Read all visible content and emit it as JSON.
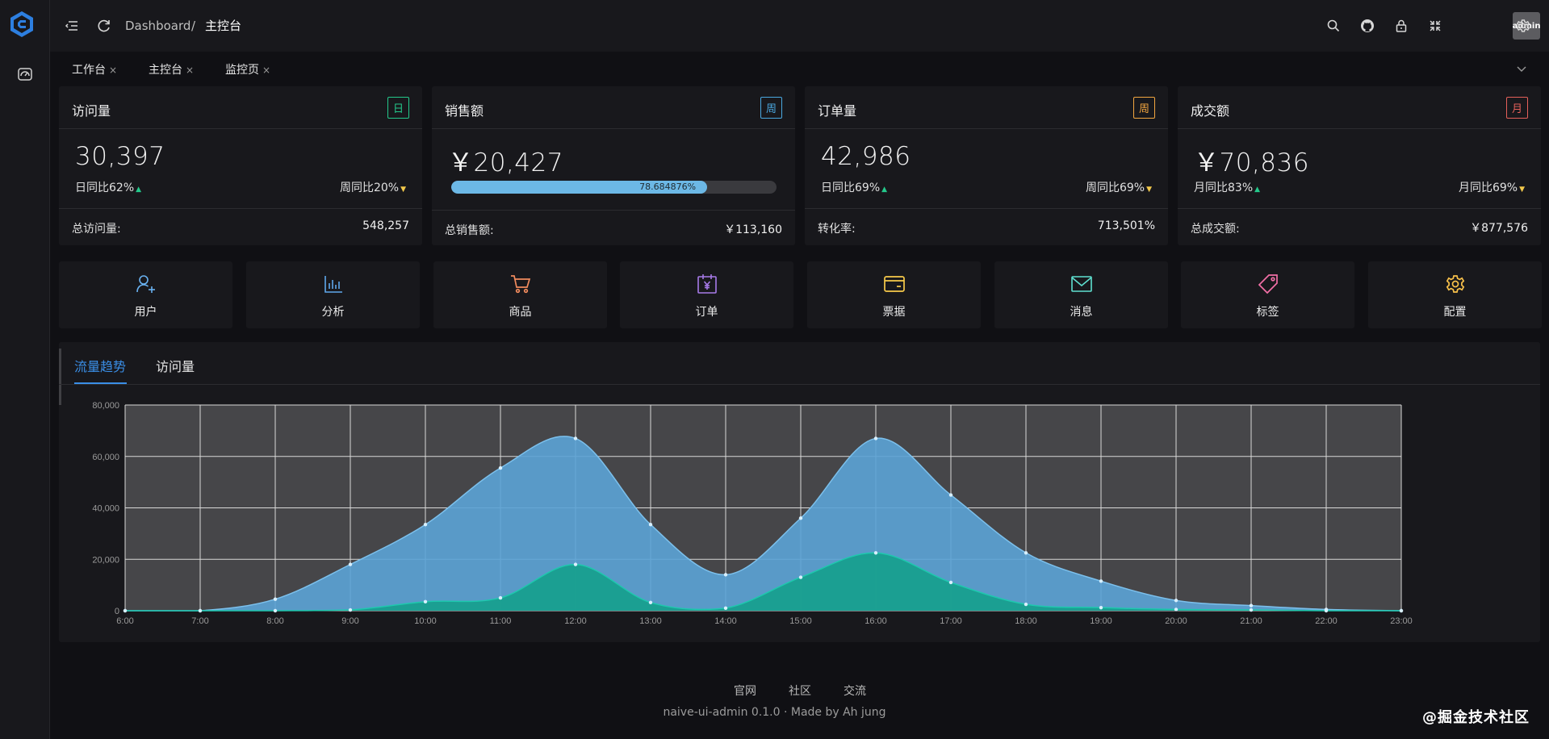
{
  "header": {
    "breadcrumb_root": "Dashboard",
    "breadcrumb_sep": "/",
    "breadcrumb_current": "主控台",
    "avatar_label": "admin",
    "icons": [
      "menu-fold-icon",
      "reload-icon",
      "search-icon",
      "github-icon",
      "lock-icon",
      "fullscreen-icon",
      "gear-icon"
    ]
  },
  "tabs": [
    {
      "label": "工作台",
      "close": "×"
    },
    {
      "label": "主控台",
      "close": "×"
    },
    {
      "label": "监控页",
      "close": "×"
    }
  ],
  "cards": [
    {
      "title": "访问量",
      "tag": "日",
      "tag_color": "#24c98b",
      "value": "30,397",
      "left_stat": "日同比62%",
      "left_trend": "▲",
      "right_stat": "周同比20%",
      "right_trend": "▼",
      "foot_label": "总访问量:",
      "foot_value": "548,257"
    },
    {
      "title": "销售额",
      "tag": "周",
      "tag_color": "#4aa8e0",
      "value": "￥20,427",
      "progress_percent": 78.684876,
      "progress_text": "78.684876%",
      "foot_label": "总销售额:",
      "foot_value": "￥113,160"
    },
    {
      "title": "订单量",
      "tag": "周",
      "tag_color": "#f2a640",
      "value": "42,986",
      "left_stat": "日同比69%",
      "left_trend": "▲",
      "right_stat": "周同比69%",
      "right_trend": "▼",
      "foot_label": "转化率:",
      "foot_value": "713,501%"
    },
    {
      "title": "成交额",
      "tag": "月",
      "tag_color": "#e5605a",
      "value": "￥70,836",
      "left_stat": "月同比83%",
      "left_trend": "▲",
      "right_stat": "月同比69%",
      "right_trend": "▼",
      "foot_label": "总成交额:",
      "foot_value": "￥877,576"
    }
  ],
  "shortcuts": [
    {
      "label": "用户",
      "icon": "user-add-icon",
      "color": "#69b1f0"
    },
    {
      "label": "分析",
      "icon": "bar-chart-icon",
      "color": "#5fa8ec"
    },
    {
      "label": "商品",
      "icon": "shopping-cart-icon",
      "color": "#f08a5d"
    },
    {
      "label": "订单",
      "icon": "calendar-yen-icon",
      "color": "#a77ae8"
    },
    {
      "label": "票据",
      "icon": "credit-card-icon",
      "color": "#f7ca4a"
    },
    {
      "label": "消息",
      "icon": "mail-icon",
      "color": "#5fe0d0"
    },
    {
      "label": "标签",
      "icon": "tag-icon",
      "color": "#f26fa6"
    },
    {
      "label": "配置",
      "icon": "gear-icon",
      "color": "#f7c04a"
    }
  ],
  "chart_tabs": [
    "流量趋势",
    "访问量"
  ],
  "chart_data": {
    "type": "area",
    "x": [
      "6:00",
      "7:00",
      "8:00",
      "9:00",
      "10:00",
      "11:00",
      "12:00",
      "13:00",
      "14:00",
      "15:00",
      "16:00",
      "17:00",
      "18:00",
      "19:00",
      "20:00",
      "21:00",
      "22:00",
      "23:00"
    ],
    "ylim": [
      0,
      80000
    ],
    "yticks": [
      "0",
      "20,000",
      "40,000",
      "60,000",
      "80,000"
    ],
    "grid": true,
    "series": [
      {
        "name": "访问量",
        "color": "#5ba3d6",
        "values": [
          0,
          0,
          4500,
          18000,
          33500,
          55500,
          67000,
          33500,
          14000,
          36000,
          67000,
          45000,
          22500,
          11500,
          4000,
          2000,
          500,
          0
        ]
      },
      {
        "name": "流量",
        "color": "#14a08c",
        "values": [
          0,
          0,
          0,
          300,
          3500,
          5000,
          18000,
          3200,
          1000,
          13000,
          22500,
          11000,
          2500,
          1200,
          500,
          300,
          0,
          0
        ]
      }
    ]
  },
  "footer": {
    "links": [
      "官网",
      "社区",
      "交流"
    ],
    "copyright": "naive-ui-admin 0.1.0 · Made by Ah jung",
    "watermark": "@掘金技术社区"
  }
}
